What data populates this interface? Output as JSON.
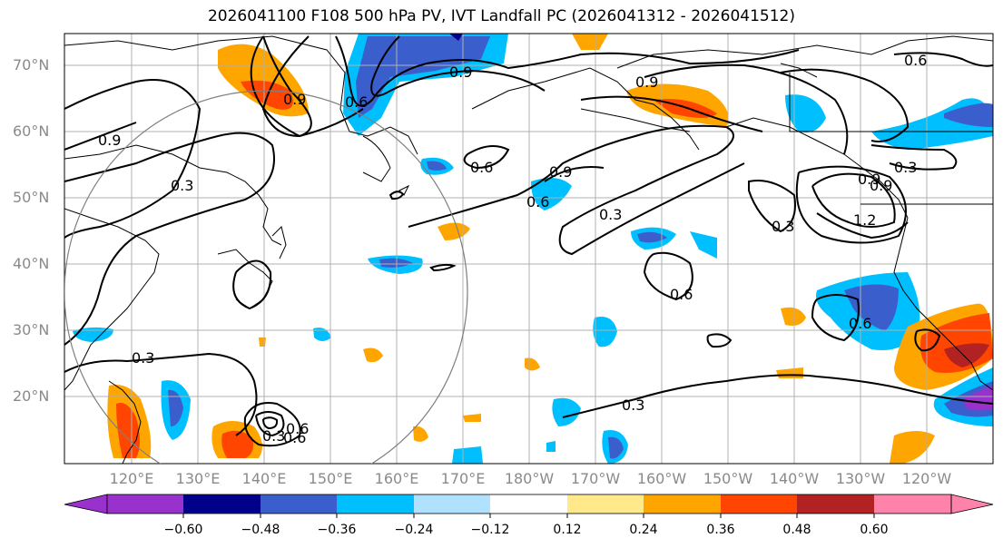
{
  "title": "2026041100 F108 500 hPa PV, IVT Landfall PC (2026041312 - 2026041512)",
  "lat_labels": [
    "70°N",
    "60°N",
    "50°N",
    "40°N",
    "30°N",
    "20°N"
  ],
  "lon_labels": [
    "120°E",
    "130°E",
    "140°E",
    "150°E",
    "160°E",
    "170°E",
    "180°W",
    "170°W",
    "160°W",
    "150°W",
    "140°W",
    "130°W",
    "120°W"
  ],
  "colorbar": {
    "ticks": [
      "−0.60",
      "−0.48",
      "−0.36",
      "−0.24",
      "−0.12",
      "0.12",
      "0.24",
      "0.36",
      "0.48",
      "0.60"
    ],
    "colors": [
      "#9932cc",
      "#00008b",
      "#3a5fcd",
      "#00bfff",
      "#b0e2ff",
      "#ffffff",
      "#ffe98a",
      "#ffa500",
      "#ff4500",
      "#b22222",
      "#ff82ab"
    ],
    "extend": "both"
  },
  "contour_labels": [
    "0.9",
    "0.6",
    "0.9",
    "0.3",
    "0.9",
    "0.6",
    "0.9",
    "0.6",
    "0.3",
    "0.9",
    "0.3",
    "0.6",
    "0.6",
    "0.3",
    "0.3",
    "0.3",
    "1.2",
    "0.9",
    "0.6",
    "0.3",
    "0.6",
    "0.6",
    "0.9"
  ],
  "colors": {
    "grid": "#b0b0b0",
    "coast": "#000000",
    "tick_label": "#8a8a8a"
  }
}
